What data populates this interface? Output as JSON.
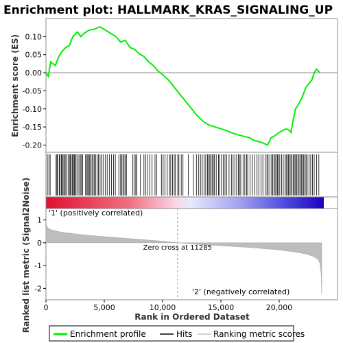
{
  "chart_data": {
    "type": "line",
    "title": "Enrichment plot: HALLMARK_KRAS_SIGNALING_UP",
    "es_panel": {
      "ylabel": "Enrichment score (ES)",
      "ylim": [
        -0.22,
        0.15
      ],
      "yticks": [
        0.1,
        0.05,
        0.0,
        -0.05,
        -0.1,
        -0.15,
        -0.2
      ],
      "ytick_labels": [
        "0.10",
        "0.05",
        "0.00",
        "-0.05",
        "-0.10",
        "-0.15",
        "-0.20"
      ],
      "series": [
        {
          "name": "Enrichment profile",
          "color": "#00ee00",
          "x": [
            0,
            200,
            400,
            800,
            1100,
            1400,
            1700,
            2000,
            2300,
            2700,
            3000,
            3300,
            3700,
            4100,
            4600,
            5000,
            5500,
            6000,
            6400,
            6800,
            7200,
            7600,
            8000,
            8400,
            8800,
            9200,
            9600,
            10000,
            10500,
            11000,
            11500,
            12000,
            12500,
            13000,
            13500,
            14000,
            14500,
            15000,
            15500,
            16000,
            16500,
            17000,
            17500,
            17800,
            18200,
            18600,
            19000,
            19300,
            19600,
            20000,
            20300,
            20600,
            20900,
            21000,
            21200,
            21400,
            21700,
            22000,
            22300,
            22600,
            22800,
            23000,
            23200,
            23500
          ],
          "y": [
            0.0,
            -0.01,
            0.03,
            0.02,
            0.045,
            0.06,
            0.07,
            0.075,
            0.1,
            0.113,
            0.1,
            0.11,
            0.118,
            0.12,
            0.127,
            0.12,
            0.11,
            0.1,
            0.085,
            0.09,
            0.07,
            0.065,
            0.052,
            0.045,
            0.03,
            0.02,
            0.005,
            -0.005,
            -0.02,
            -0.04,
            -0.06,
            -0.08,
            -0.1,
            -0.12,
            -0.135,
            -0.145,
            -0.15,
            -0.155,
            -0.16,
            -0.167,
            -0.172,
            -0.176,
            -0.18,
            -0.187,
            -0.19,
            -0.194,
            -0.2,
            -0.18,
            -0.175,
            -0.165,
            -0.16,
            -0.155,
            -0.16,
            -0.165,
            -0.13,
            -0.1,
            -0.085,
            -0.065,
            -0.04,
            -0.028,
            -0.02,
            0.0,
            0.01,
            0.0
          ]
        }
      ]
    },
    "hits": {
      "name": "Hits",
      "positions": [
        120,
        250,
        360,
        870,
        940,
        1000,
        1140,
        1200,
        1330,
        1390,
        1470,
        1560,
        1650,
        1750,
        1900,
        2010,
        2100,
        2160,
        2260,
        2350,
        2420,
        2480,
        2580,
        2740,
        2830,
        2950,
        3050,
        3150,
        3400,
        3470,
        3580,
        3650,
        3750,
        3830,
        3950,
        4050,
        4150,
        4260,
        4380,
        4500,
        4640,
        4760,
        4900,
        5080,
        5250,
        5450,
        5620,
        5800,
        5950,
        6250,
        6400,
        6500,
        6600,
        6700,
        6800,
        6900,
        7450,
        7560,
        7700,
        7800,
        8100,
        8400,
        8550,
        8700,
        8900,
        9100,
        9350,
        9500,
        9900,
        10050,
        10200,
        10400,
        10600,
        10700,
        10850,
        11000,
        11100,
        11300,
        11400,
        11600,
        11750,
        12200,
        12650,
        12900,
        13100,
        13250,
        13400,
        13550,
        13700,
        13850,
        13950,
        14050,
        14150,
        14250,
        14350,
        14450,
        14600,
        14800,
        14900,
        15050,
        15200,
        15350,
        15500,
        15700,
        15900,
        16050,
        16200,
        16350,
        16500,
        16600,
        16700,
        16900,
        17050,
        17200,
        17300,
        17500,
        17700,
        17900,
        18100,
        18250,
        18450,
        18600,
        18800,
        18950,
        19050,
        19200,
        19350,
        19450,
        19550,
        19650,
        19750,
        19850,
        19950,
        20050,
        20200,
        20350,
        20500,
        20600,
        20700,
        20800,
        20900,
        21000,
        21100,
        21200,
        21300,
        21400,
        21500,
        21600,
        21700,
        21800,
        21900,
        22000,
        22100,
        22200,
        22300,
        22400,
        22550,
        22700,
        22850,
        23000,
        23200,
        23400
      ]
    },
    "rank_panel": {
      "ylabel": "Ranked list metric (Signal2Noise)",
      "xlabel": "Rank in Ordered Dataset",
      "xlim": [
        0,
        25000
      ],
      "xticks": [
        0,
        5000,
        10000,
        15000,
        20000
      ],
      "xtick_labels": [
        "0",
        "5,000",
        "10,000",
        "15,000",
        "20,000"
      ],
      "ylim": [
        -2.5,
        1.5
      ],
      "yticks": [
        1,
        0,
        -1,
        -2
      ],
      "ytick_labels": [
        "1",
        "0",
        "-1",
        "-2"
      ],
      "series": [
        {
          "name": "Ranking metric scores",
          "color": "#bdbdbd",
          "x": [
            0,
            100,
            300,
            600,
            1000,
            1500,
            2000,
            3000,
            4000,
            5000,
            6000,
            7000,
            8000,
            9000,
            10000,
            11285,
            12000,
            13000,
            14000,
            15000,
            16000,
            17000,
            18000,
            19000,
            20000,
            21000,
            22000,
            22500,
            23000,
            23300,
            23500,
            23600,
            23650
          ],
          "y": [
            0.85,
            0.7,
            0.6,
            0.55,
            0.5,
            0.45,
            0.42,
            0.36,
            0.31,
            0.27,
            0.23,
            0.19,
            0.15,
            0.11,
            0.07,
            0.0,
            -0.03,
            -0.07,
            -0.1,
            -0.13,
            -0.16,
            -0.19,
            -0.23,
            -0.27,
            -0.32,
            -0.38,
            -0.46,
            -0.52,
            -0.62,
            -0.72,
            -0.9,
            -1.4,
            -2.25
          ]
        }
      ],
      "zero_cross_label": "Zero cross at 11285",
      "zero_cross": 11285,
      "positive_label": "'1' (positively correlated)",
      "negative_label": "'2' (negatively correlated)"
    },
    "ranked_total": 23650,
    "legend": {
      "placement": "bottom",
      "entries": [
        {
          "label": "Enrichment profile",
          "color": "#00ee00"
        },
        {
          "label": "Hits",
          "color": "#000000"
        },
        {
          "label": "Ranking metric scores",
          "color": "#bdbdbd"
        }
      ]
    },
    "colors": {
      "positive": "#e0203a",
      "neutral": "#ffffff",
      "negative": "#2020d0",
      "positive_label": "#cc0000",
      "negative_label": "#2020cc"
    }
  }
}
